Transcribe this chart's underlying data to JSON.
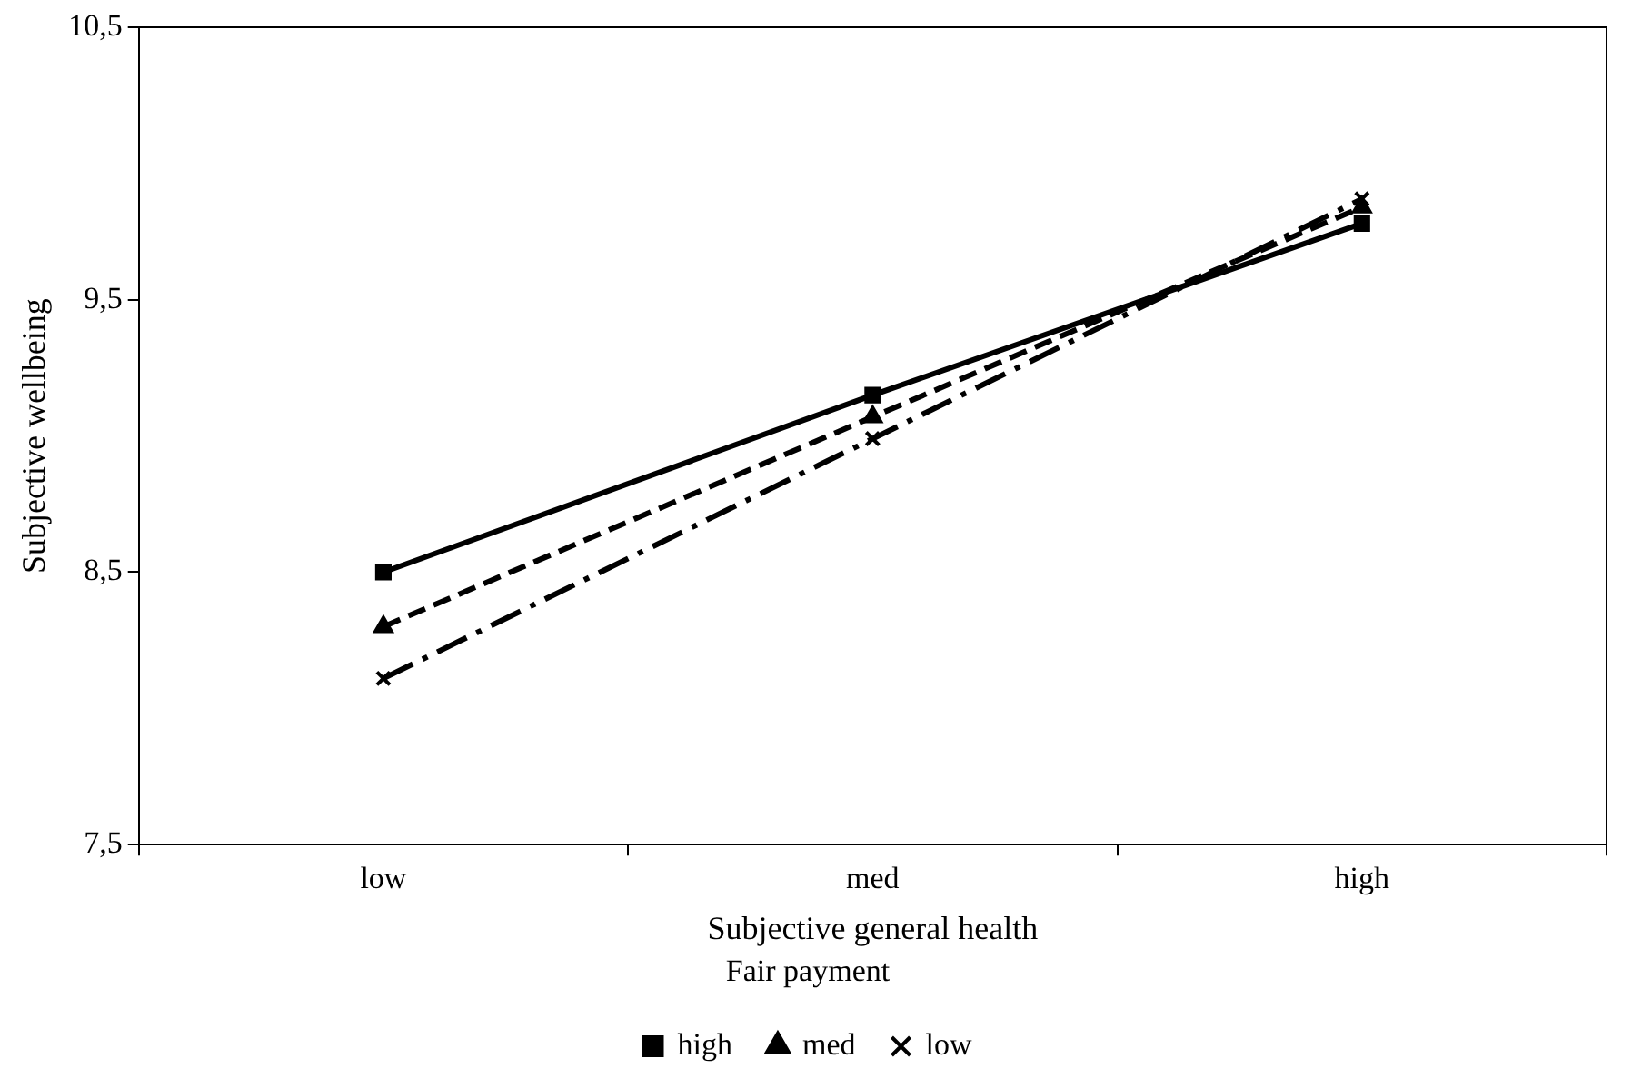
{
  "chart_data": {
    "type": "line",
    "xlabel": "Subjective general health",
    "ylabel": "Subjective wellbeing",
    "legend_title": "Fair payment",
    "legend": "bottom",
    "grid": false,
    "categories": [
      "low",
      "med",
      "high"
    ],
    "ylim": [
      7.5,
      10.5
    ],
    "yticks": [
      {
        "value": 7.5,
        "label": "7,5"
      },
      {
        "value": 8.5,
        "label": "8,5"
      },
      {
        "value": 9.5,
        "label": "9,5"
      },
      {
        "value": 10.5,
        "label": "10,5"
      }
    ],
    "series": [
      {
        "name": "high",
        "color": "#000000",
        "values": [
          8.5,
          9.15,
          9.78
        ],
        "marker": "square",
        "line_style": "solid"
      },
      {
        "name": "med",
        "color": "#000000",
        "values": [
          8.3,
          9.07,
          9.84
        ],
        "marker": "triangle",
        "line_style": "dashed"
      },
      {
        "name": "low",
        "color": "#000000",
        "values": [
          8.11,
          8.99,
          9.87
        ],
        "marker": "cross",
        "line_style": "dashdot"
      }
    ]
  }
}
